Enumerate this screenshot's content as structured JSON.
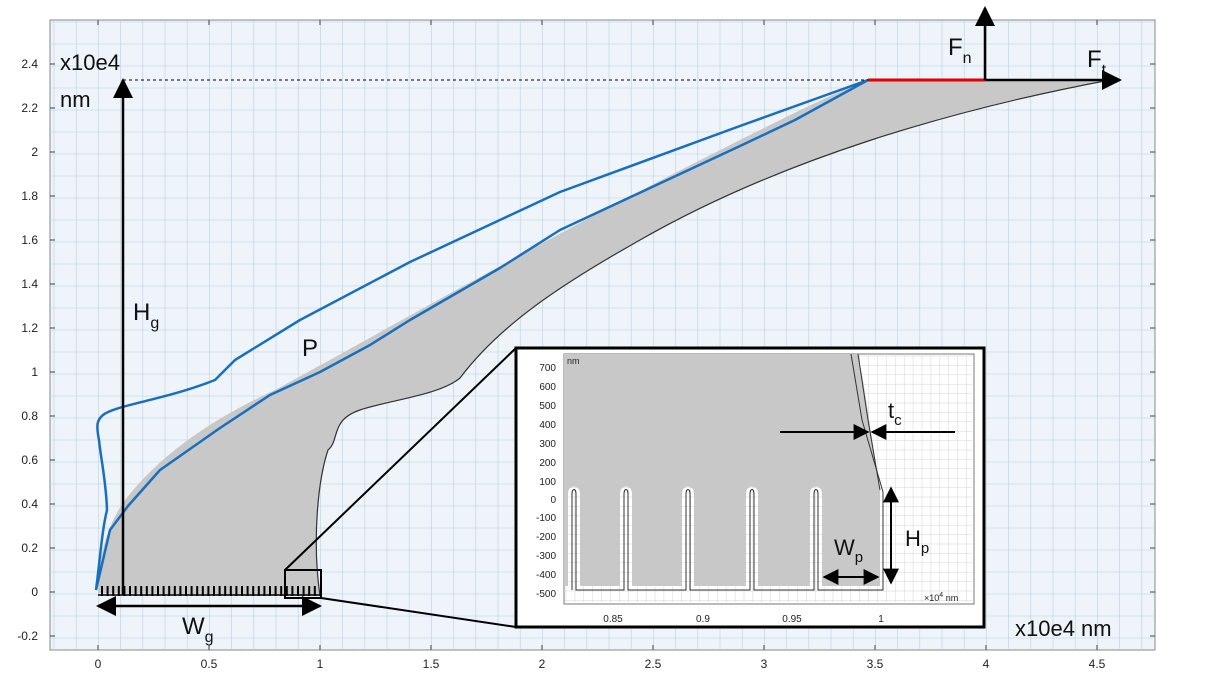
{
  "main": {
    "x_ticks": [
      "0",
      "0.5",
      "1",
      "1.5",
      "2",
      "2.5",
      "3",
      "3.5",
      "4",
      "4.5"
    ],
    "y_ticks": [
      "-0.2",
      "0",
      "0.2",
      "0.4",
      "0.6",
      "0.8",
      "1",
      "1.2",
      "1.4",
      "1.6",
      "1.8",
      "2",
      "2.2",
      "2.4"
    ],
    "y_unit_line1": "x10e4",
    "y_unit_line2": "nm",
    "x_unit": "x10e4 nm"
  },
  "labels": {
    "Hg": {
      "main": "H",
      "sub": "g"
    },
    "Wg": {
      "main": "W",
      "sub": "g"
    },
    "P": "P",
    "Fn": {
      "main": "F",
      "sub": "n"
    },
    "Ft": {
      "main": "F",
      "sub": "t"
    }
  },
  "inset": {
    "y_ticks": [
      "700",
      "600",
      "500",
      "400",
      "300",
      "200",
      "100",
      "0",
      "-100",
      "-200",
      "-300",
      "-400",
      "-500"
    ],
    "x_ticks": [
      "0.85",
      "0.9",
      "0.95",
      "1"
    ],
    "y_unit": "nm",
    "x_unit_prefix": "×10",
    "x_unit_exp": "4",
    "x_unit_suffix": " nm",
    "tc": {
      "main": "t",
      "sub": "c"
    },
    "Wp": {
      "main": "W",
      "sub": "p"
    },
    "Hp": {
      "main": "H",
      "sub": "p"
    }
  },
  "colors": {
    "grid_bg": "#eef4fa",
    "grid_line": "#b9cfe2",
    "blue_outline": "#1a6fbd",
    "gray_fill": "#c8c8c8",
    "red_edge": "#e00000"
  }
}
